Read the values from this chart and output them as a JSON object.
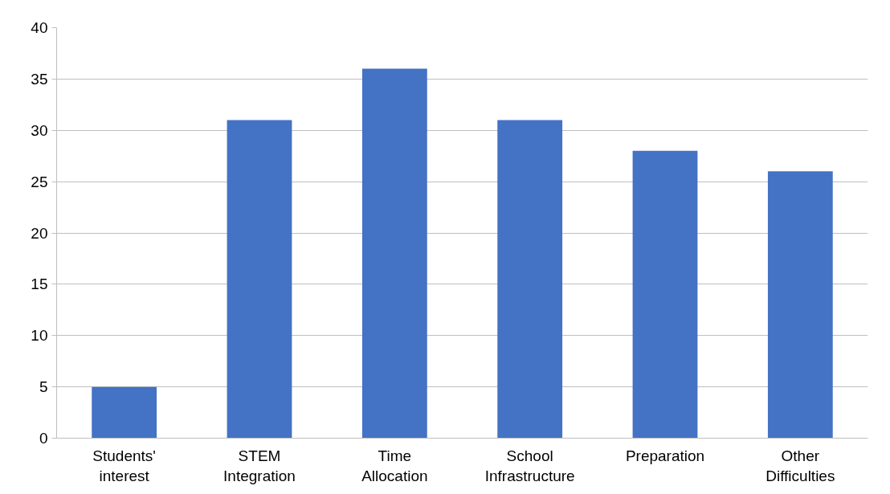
{
  "chart_data": {
    "type": "bar",
    "categories": [
      "Students' interest",
      "STEM Integration",
      "Time Allocation",
      "School Infrastructure",
      "Preparation",
      "Other Difficulties"
    ],
    "values": [
      5,
      31,
      36,
      31,
      28,
      26
    ],
    "color": "#4472c4",
    "ylim": [
      0,
      40
    ],
    "yticks": [
      0,
      5,
      10,
      15,
      20,
      25,
      30,
      35,
      40
    ],
    "grid": "y"
  }
}
